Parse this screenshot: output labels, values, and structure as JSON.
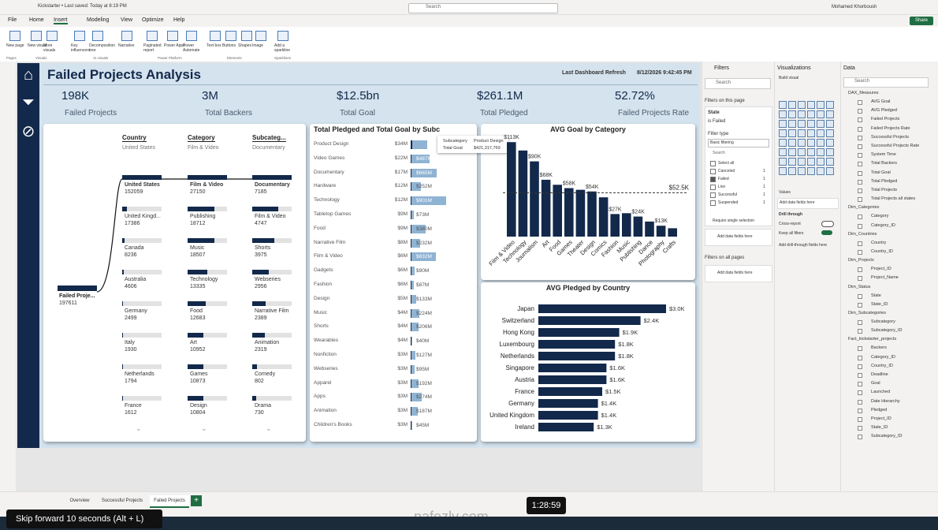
{
  "window": {
    "title": "Kickstarter • Last saved: Today at 8:19 PM",
    "search": "Search",
    "user": "Mohamed Khorboush",
    "share": "Share"
  },
  "menu": [
    "File",
    "Home",
    "Insert",
    "Modeling",
    "View",
    "Optimize",
    "Help"
  ],
  "ribbon": {
    "buttons": [
      "New page",
      "New visual",
      "More visuals",
      "Key influencers",
      "Decomposition tree",
      "Narrative",
      "Paginated report",
      "Power Apps",
      "Power Automate",
      "Text box",
      "Buttons",
      "Shapes",
      "Image",
      "Add a sparkline"
    ],
    "groups": [
      "Pages",
      "Visuals",
      "AI visuals",
      "Power Platform",
      "Elements",
      "Sparklines"
    ]
  },
  "report": {
    "title": "Failed Projects Analysis",
    "refresh_label": "Last Dashboard Refresh",
    "refresh_value": "8/12/2026 9:42:45 PM",
    "kpis": [
      {
        "value": "198K",
        "label": "Failed Projects"
      },
      {
        "value": "3M",
        "label": "Total Backers"
      },
      {
        "value": "$12.5bn",
        "label": "Total Goal"
      },
      {
        "value": "$261.1M",
        "label": "Total Pledged"
      },
      {
        "value": "52.72%",
        "label": "Failed Projects Rate"
      }
    ],
    "tree": {
      "root": {
        "name": "Failed Proje...",
        "value": 197611
      },
      "columns": [
        {
          "header": "Country",
          "selected": "United States",
          "nodes": [
            {
              "name": "United States",
              "value": 152059
            },
            {
              "name": "United Kingd...",
              "value": 17386
            },
            {
              "name": "Canada",
              "value": 8236
            },
            {
              "name": "Australia",
              "value": 4606
            },
            {
              "name": "Germany",
              "value": 2499
            },
            {
              "name": "Italy",
              "value": 1930
            },
            {
              "name": "Netherlands",
              "value": 1794
            },
            {
              "name": "France",
              "value": 1612
            }
          ]
        },
        {
          "header": "Category",
          "selected": "Film & Video",
          "nodes": [
            {
              "name": "Film & Video",
              "value": 27150
            },
            {
              "name": "Publishing",
              "value": 18712
            },
            {
              "name": "Music",
              "value": 18507
            },
            {
              "name": "Technology",
              "value": 13335
            },
            {
              "name": "Food",
              "value": 12683
            },
            {
              "name": "Art",
              "value": 10952
            },
            {
              "name": "Games",
              "value": 10873
            },
            {
              "name": "Design",
              "value": 10804
            }
          ]
        },
        {
          "header": "Subcateg...",
          "selected": "Documentary",
          "nodes": [
            {
              "name": "Documentary",
              "value": 7185
            },
            {
              "name": "Film & Video",
              "value": 4747
            },
            {
              "name": "Shorts",
              "value": 3975
            },
            {
              "name": "Webseries",
              "value": 2956
            },
            {
              "name": "Narrative Film",
              "value": 2389
            },
            {
              "name": "Animation",
              "value": 2319
            },
            {
              "name": "Comedy",
              "value": 802
            },
            {
              "name": "Drama",
              "value": 730
            }
          ]
        }
      ]
    },
    "pledged_goal": {
      "title": "Total Pledged and Total Goal by Subc",
      "categories": [
        "Product Design",
        "Video Games",
        "Documentary",
        "Hardware",
        "Technology",
        "Tabletop Games",
        "Food",
        "Narrative Film",
        "Film & Video",
        "Gadgets",
        "Fashion",
        "Design",
        "Music",
        "Shorts",
        "Wearables",
        "Nonfiction",
        "Webseries",
        "Apparel",
        "Apps",
        "Animation",
        "Children's Books"
      ],
      "pledged": [
        34,
        22,
        17,
        12,
        12,
        9,
        9,
        8,
        6,
        6,
        6,
        5,
        4,
        4,
        4,
        3,
        3,
        3,
        3,
        3,
        3
      ],
      "pledged_labels": [
        "$34M",
        "$22M",
        "$17M",
        "$12M",
        "$12M",
        "$9M",
        "$9M",
        "$8M",
        "$6M",
        "$6M",
        "$6M",
        "$5M",
        "$4M",
        "$4M",
        "$4M",
        "$3M",
        "$3M",
        "$3M",
        "$3M",
        "$3M",
        "$3M"
      ],
      "goal": [
        421,
        487,
        665,
        252,
        901,
        73,
        380,
        232,
        632,
        90,
        87,
        133,
        224,
        206,
        40,
        127,
        95,
        192,
        274,
        187,
        45
      ],
      "goal_labels": [
        null,
        "$487M",
        "$665M",
        "$252M",
        "$901M",
        "$73M",
        "$380M",
        "$232M",
        "$632M",
        "$90M",
        "$87M",
        "$133M",
        "$224M",
        "$206M",
        "$40M",
        "$127M",
        "$95M",
        "$192M",
        "$274M",
        "$187M",
        "$45M"
      ],
      "tooltip": {
        "k1": "Subcategory",
        "v1": "Product Design",
        "k2": "Total Goal",
        "v2": "$421,317,769"
      }
    },
    "avg_goal": {
      "title": "AVG Goal by Category",
      "categories": [
        "Film & Video",
        "Technology",
        "Journalism",
        "Art",
        "Food",
        "Games",
        "Theater",
        "Design",
        "Comics",
        "Fashion",
        "Music",
        "Publishing",
        "Dance",
        "Photography",
        "Crafts"
      ],
      "values": [
        113,
        103,
        90,
        68,
        62,
        58,
        56,
        54,
        47,
        27,
        28,
        24,
        18,
        13,
        10
      ],
      "value_labels": [
        "$113K",
        null,
        "$90K",
        "$68K",
        null,
        "$58K",
        null,
        "$54K",
        null,
        "$27K",
        null,
        "$24K",
        null,
        "$13K",
        null
      ],
      "average": 52.5,
      "average_label": "$52.5K"
    },
    "avg_pledged": {
      "title": "AVG Pledged by Country",
      "categories": [
        "Japan",
        "Switzerland",
        "Hong Kong",
        "Luxembourg",
        "Netherlands",
        "Singapore",
        "Austria",
        "France",
        "Germany",
        "United Kingdom",
        "Ireland"
      ],
      "values": [
        3.0,
        2.4,
        1.9,
        1.8,
        1.8,
        1.6,
        1.6,
        1.5,
        1.4,
        1.4,
        1.3
      ],
      "value_labels": [
        "$3.0K",
        "$2.4K",
        "$1.9K",
        "$1.8K",
        "$1.8K",
        "$1.6K",
        "$1.6K",
        "$1.5K",
        "$1.4K",
        "$1.4K",
        "$1.3K"
      ]
    }
  },
  "filters": {
    "title": "Filters",
    "search": "Search",
    "on_page": "Filters on this page",
    "field": "State",
    "condition": "is Failed",
    "filter_type": "Filter type",
    "type_value": "Basic filtering",
    "list_search": "Search",
    "options": [
      {
        "name": "Select all",
        "count": null
      },
      {
        "name": "Canceled",
        "count": 1
      },
      {
        "name": "Failed",
        "count": 1
      },
      {
        "name": "Live",
        "count": 1
      },
      {
        "name": "Successful",
        "count": 1
      },
      {
        "name": "Suspended",
        "count": 1
      }
    ],
    "single": "Require single selection",
    "add": "Add data fields here",
    "all_pages": "Filters on all pages",
    "add2": "Add data fields here"
  },
  "visualizations": {
    "title": "Visualizations",
    "build": "Build visual",
    "values": "Values",
    "add": "Add data fields here",
    "drill": "Drill through",
    "cross": "Cross-report",
    "keep": "Keep all filters",
    "add_drill": "Add drill-through fields here"
  },
  "data_pane": {
    "title": "Data",
    "search": "Search",
    "tables": [
      {
        "name": "DAX_Measures",
        "fields": [
          "AVG Goal",
          "AVG Pledged",
          "Failed Projects",
          "Failed Projects Rate",
          "Successful Projects",
          "Successful Projects Rate",
          "System Time",
          "Total Backers",
          "Total Goal",
          "Total Pledged",
          "Total Projects",
          "Total Projects all states"
        ]
      },
      {
        "name": "Dim_Categories",
        "fields": [
          "Category",
          "Category_ID"
        ]
      },
      {
        "name": "Dim_Countries",
        "fields": [
          "Country",
          "Country_ID"
        ]
      },
      {
        "name": "Dim_Projects",
        "fields": [
          "Project_ID",
          "Project_Name"
        ]
      },
      {
        "name": "Dim_Status",
        "fields": [
          "State",
          "State_ID"
        ]
      },
      {
        "name": "Dim_Subcategories",
        "fields": [
          "Subcategory",
          "Subcategory_ID"
        ]
      },
      {
        "name": "Fact_kickstarter_projects",
        "fields": [
          "Backers",
          "Category_ID",
          "Country_ID",
          "Deadline",
          "Goal",
          "Launched",
          "Date Hierarchy",
          "Pledged",
          "Project_ID",
          "State_ID",
          "Subcategory_ID"
        ]
      }
    ]
  },
  "tabs": [
    "Overview",
    "Successful Projects",
    "Failed Projects"
  ],
  "overlay": {
    "time": "1:28:59",
    "skip": "Skip forward 10 seconds (Alt + L)",
    "watermark": "nafezly.com"
  }
}
